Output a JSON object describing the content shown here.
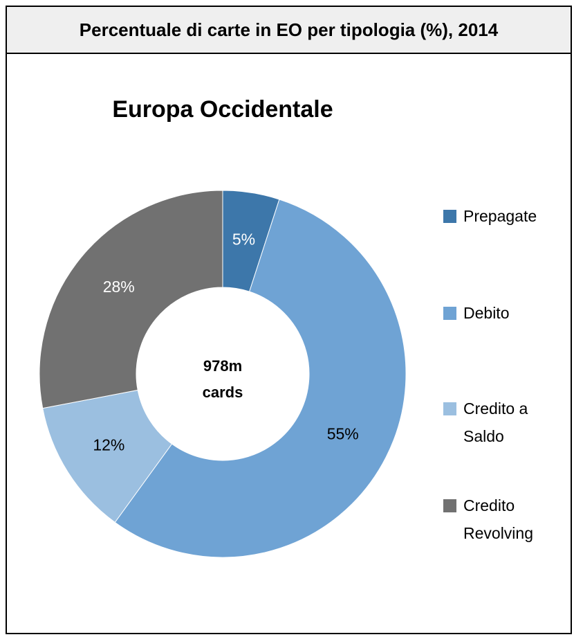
{
  "chart_data": {
    "type": "donut",
    "header": "Percentuale di carte in EO per tipologia (%), 2014",
    "title": "Europa Occidentale",
    "center_label": [
      "978m",
      "cards"
    ],
    "categories": [
      "Prepagate",
      "Debito",
      "Credito a Saldo",
      "Credito Revolving"
    ],
    "values": [
      5,
      55,
      12,
      28
    ],
    "value_labels": [
      "5%",
      "55%",
      "12%",
      "28%"
    ],
    "colors": [
      "#3d77aa",
      "#6fa3d4",
      "#9bbfe0",
      "#717171"
    ],
    "legend": "right"
  }
}
